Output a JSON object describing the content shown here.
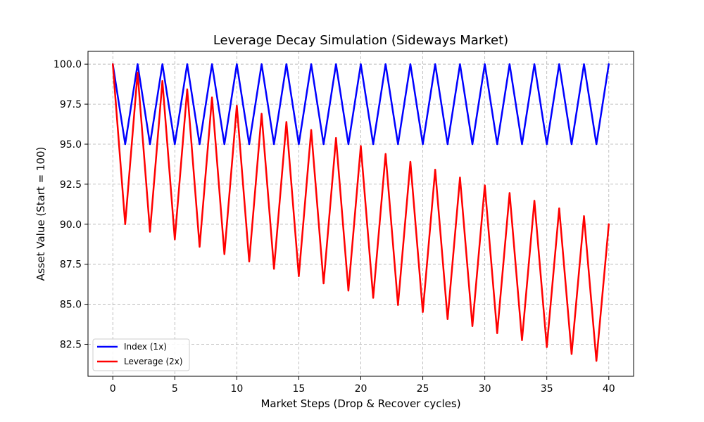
{
  "chart_data": {
    "type": "line",
    "title": "Leverage Decay Simulation (Sideways Market)",
    "xlabel": "Market Steps (Drop & Recover cycles)",
    "ylabel": "Asset Value (Start = 100)",
    "xlim": [
      -2,
      42
    ],
    "ylim": [
      80.5,
      100.8
    ],
    "xticks": [
      0,
      5,
      10,
      15,
      20,
      25,
      30,
      35,
      40
    ],
    "xtick_labels": [
      "0",
      "5",
      "10",
      "15",
      "20",
      "25",
      "30",
      "35",
      "40"
    ],
    "yticks": [
      82.5,
      85.0,
      87.5,
      90.0,
      92.5,
      95.0,
      97.5,
      100.0
    ],
    "ytick_labels": [
      "82.5",
      "85.0",
      "87.5",
      "90.0",
      "92.5",
      "95.0",
      "97.5",
      "100.0"
    ],
    "grid": true,
    "legend_position": "lower-left",
    "series": [
      {
        "name": "Index (1x)",
        "color": "#0000ff",
        "x": [
          0,
          1,
          2,
          3,
          4,
          5,
          6,
          7,
          8,
          9,
          10,
          11,
          12,
          13,
          14,
          15,
          16,
          17,
          18,
          19,
          20,
          21,
          22,
          23,
          24,
          25,
          26,
          27,
          28,
          29,
          30,
          31,
          32,
          33,
          34,
          35,
          36,
          37,
          38,
          39,
          40
        ],
        "values": [
          100.0,
          95.0,
          100.0,
          95.0,
          100.0,
          95.0,
          100.0,
          95.0,
          100.0,
          95.0,
          100.0,
          95.0,
          100.0,
          95.0,
          100.0,
          95.0,
          100.0,
          95.0,
          100.0,
          95.0,
          100.0,
          95.0,
          100.0,
          95.0,
          100.0,
          95.0,
          100.0,
          95.0,
          100.0,
          95.0,
          100.0,
          95.0,
          100.0,
          95.0,
          100.0,
          95.0,
          100.0,
          95.0,
          100.0,
          95.0,
          100.0
        ]
      },
      {
        "name": "Leverage (2x)",
        "color": "#ff0000",
        "x": [
          0,
          1,
          2,
          3,
          4,
          5,
          6,
          7,
          8,
          9,
          10,
          11,
          12,
          13,
          14,
          15,
          16,
          17,
          18,
          19,
          20,
          21,
          22,
          23,
          24,
          25,
          26,
          27,
          28,
          29,
          30,
          31,
          32,
          33,
          34,
          35,
          36,
          37,
          38,
          39,
          40
        ],
        "values": [
          100.0,
          90.0,
          99.47,
          89.53,
          98.95,
          89.05,
          98.43,
          88.59,
          97.92,
          88.13,
          97.41,
          87.67,
          96.9,
          87.21,
          96.39,
          86.75,
          95.89,
          86.3,
          95.39,
          85.85,
          94.89,
          85.4,
          94.39,
          84.95,
          93.9,
          84.51,
          93.41,
          84.07,
          92.92,
          83.63,
          92.43,
          83.19,
          91.95,
          82.75,
          91.47,
          82.32,
          90.99,
          81.89,
          90.51,
          81.46,
          90.0
        ]
      }
    ]
  }
}
